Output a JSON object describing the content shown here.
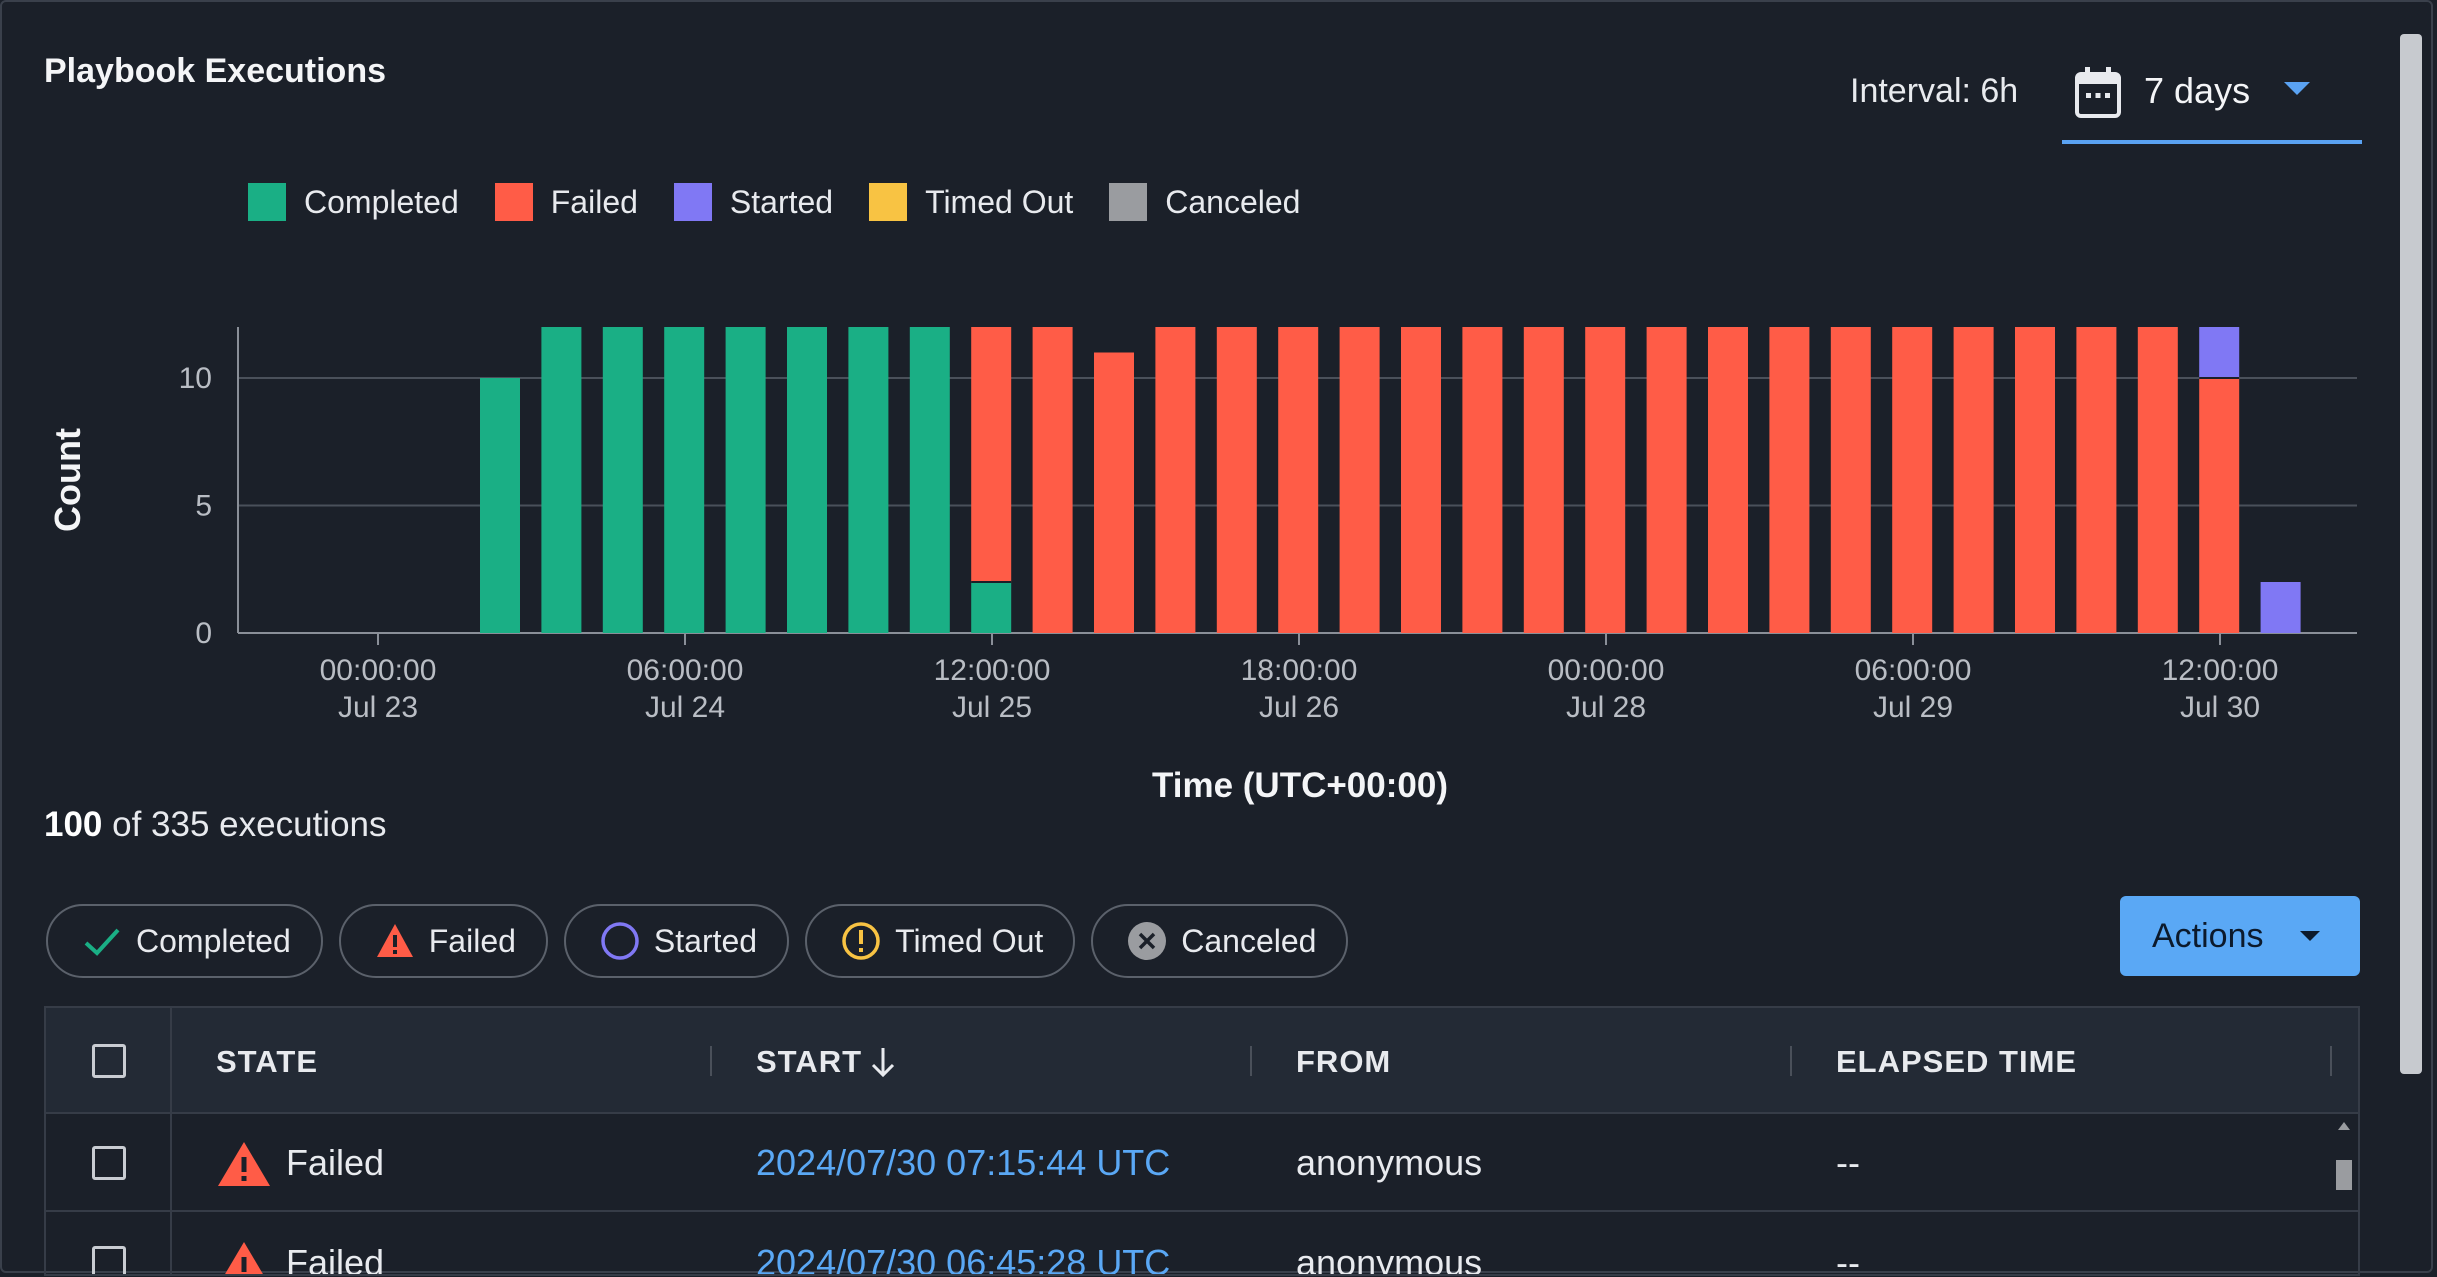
{
  "title": "Playbook Executions",
  "interval_label": "Interval: 6h",
  "range": {
    "value": "7 days",
    "icon": "calendar-icon"
  },
  "legend": [
    {
      "label": "Completed",
      "color": "#1aaf85"
    },
    {
      "label": "Failed",
      "color": "#ff5c47"
    },
    {
      "label": "Started",
      "color": "#8078f4"
    },
    {
      "label": "Timed Out",
      "color": "#f8c343"
    },
    {
      "label": "Canceled",
      "color": "#9a9ca0"
    }
  ],
  "chart_data": {
    "type": "bar",
    "stacked": true,
    "xlabel": "Time (UTC+00:00)",
    "ylabel": "Count",
    "ylim": [
      0,
      12
    ],
    "yticks": [
      0,
      5,
      10
    ],
    "grid": true,
    "x_ticks": [
      {
        "time": "00:00:00",
        "date": "Jul 23"
      },
      {
        "time": "06:00:00",
        "date": "Jul 24"
      },
      {
        "time": "12:00:00",
        "date": "Jul 25"
      },
      {
        "time": "18:00:00",
        "date": "Jul 26"
      },
      {
        "time": "00:00:00",
        "date": "Jul 28"
      },
      {
        "time": "06:00:00",
        "date": "Jul 29"
      },
      {
        "time": "12:00:00",
        "date": "Jul 30"
      }
    ],
    "series": [
      {
        "name": "Completed",
        "color": "#1aaf85",
        "values": [
          10,
          12,
          12,
          12,
          12,
          12,
          12,
          12,
          2,
          0,
          0,
          0,
          0,
          0,
          0,
          0,
          0,
          0,
          0,
          0,
          0,
          0,
          0,
          0,
          0,
          0,
          0,
          0,
          0,
          0
        ]
      },
      {
        "name": "Failed",
        "color": "#ff5c47",
        "values": [
          0,
          0,
          0,
          0,
          0,
          0,
          0,
          0,
          10,
          12,
          11,
          12,
          12,
          12,
          12,
          12,
          12,
          12,
          12,
          12,
          12,
          12,
          12,
          12,
          12,
          12,
          12,
          12,
          10,
          0
        ]
      },
      {
        "name": "Started",
        "color": "#8078f4",
        "values": [
          0,
          0,
          0,
          0,
          0,
          0,
          0,
          0,
          0,
          0,
          0,
          0,
          0,
          0,
          0,
          0,
          0,
          0,
          0,
          0,
          0,
          0,
          0,
          0,
          0,
          0,
          0,
          0,
          2,
          2
        ]
      },
      {
        "name": "Timed Out",
        "color": "#f8c343",
        "values": [
          0,
          0,
          0,
          0,
          0,
          0,
          0,
          0,
          0,
          0,
          0,
          0,
          0,
          0,
          0,
          0,
          0,
          0,
          0,
          0,
          0,
          0,
          0,
          0,
          0,
          0,
          0,
          0,
          0,
          0
        ]
      },
      {
        "name": "Canceled",
        "color": "#9a9ca0",
        "values": [
          0,
          0,
          0,
          0,
          0,
          0,
          0,
          0,
          0,
          0,
          0,
          0,
          0,
          0,
          0,
          0,
          0,
          0,
          0,
          0,
          0,
          0,
          0,
          0,
          0,
          0,
          0,
          0,
          0,
          0
        ]
      }
    ]
  },
  "summary": {
    "shown": "100",
    "rest": "of 335 executions"
  },
  "filters": [
    {
      "label": "Completed",
      "icon": "check-icon"
    },
    {
      "label": "Failed",
      "icon": "warning-icon"
    },
    {
      "label": "Started",
      "icon": "circle-icon"
    },
    {
      "label": "Timed Out",
      "icon": "exclamation-circle-icon"
    },
    {
      "label": "Canceled",
      "icon": "x-circle-icon"
    }
  ],
  "actions_label": "Actions",
  "table": {
    "columns": [
      "STATE",
      "START",
      "FROM",
      "ELAPSED TIME"
    ],
    "rows": [
      {
        "state": "Failed",
        "start": "2024/07/30 07:15:44 UTC",
        "from": "anonymous",
        "elapsed": "--"
      },
      {
        "state": "Failed",
        "start": "2024/07/30 06:45:28 UTC",
        "from": "anonymous",
        "elapsed": "--"
      }
    ]
  }
}
